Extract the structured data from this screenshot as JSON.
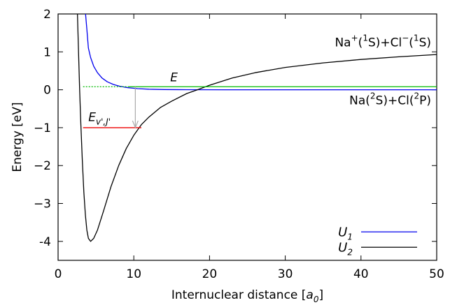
{
  "chart_data": {
    "type": "line",
    "xlabel": "Internuclear distance [a0]",
    "xlabel_main": "Internuclear distance [",
    "xlabel_sym": "a",
    "xlabel_sub": "0",
    "xlabel_end": "]",
    "ylabel": "Energy [eV]",
    "xlim": [
      0,
      50
    ],
    "ylim": [
      -4.5,
      2
    ],
    "x_ticks": [
      0,
      10,
      20,
      30,
      40,
      50
    ],
    "y_ticks": [
      2,
      1,
      0,
      -1,
      -2,
      -3,
      -4
    ],
    "x_tick_labels": [
      "0",
      "10",
      "20",
      "30",
      "40",
      "50"
    ],
    "y_tick_labels": [
      "2",
      "1",
      "0",
      "−1",
      "−2",
      "−3",
      "-4"
    ],
    "grid": false,
    "legend_position": "bottom-right",
    "series": [
      {
        "name": "U1",
        "legend_symbol": "U",
        "legend_sub": "1",
        "color": "#0000ee",
        "points": [
          [
            3.6,
            2.05
          ],
          [
            3.8,
            1.6
          ],
          [
            4.0,
            1.1
          ],
          [
            4.3,
            0.85
          ],
          [
            4.7,
            0.62
          ],
          [
            5.2,
            0.45
          ],
          [
            5.8,
            0.31
          ],
          [
            6.5,
            0.21
          ],
          [
            7.3,
            0.14
          ],
          [
            8.2,
            0.09
          ],
          [
            9.2,
            0.055
          ],
          [
            10.5,
            0.03
          ],
          [
            12.0,
            0.015
          ],
          [
            14.0,
            0.006
          ],
          [
            17.0,
            0.002
          ],
          [
            22.0,
            0.0
          ],
          [
            30.0,
            0.0
          ],
          [
            40.0,
            0.0
          ],
          [
            50.0,
            0.0
          ]
        ]
      },
      {
        "name": "U2",
        "legend_symbol": "U",
        "legend_sub": "2",
        "color": "#000000",
        "points": [
          [
            2.55,
            2.05
          ],
          [
            2.7,
            1.0
          ],
          [
            2.85,
            0.0
          ],
          [
            3.0,
            -0.9
          ],
          [
            3.2,
            -1.85
          ],
          [
            3.4,
            -2.7
          ],
          [
            3.6,
            -3.3
          ],
          [
            3.8,
            -3.7
          ],
          [
            4.0,
            -3.92
          ],
          [
            4.3,
            -4.0
          ],
          [
            4.7,
            -3.92
          ],
          [
            5.2,
            -3.7
          ],
          [
            6.0,
            -3.2
          ],
          [
            7.0,
            -2.55
          ],
          [
            8.0,
            -2.0
          ],
          [
            9.0,
            -1.55
          ],
          [
            10.0,
            -1.2
          ],
          [
            11.0,
            -0.92
          ],
          [
            12.0,
            -0.72
          ],
          [
            13.5,
            -0.47
          ],
          [
            15.0,
            -0.3
          ],
          [
            17.0,
            -0.1
          ],
          [
            18.4,
            0.0
          ],
          [
            20.0,
            0.12
          ],
          [
            23.0,
            0.31
          ],
          [
            26.0,
            0.45
          ],
          [
            30.0,
            0.59
          ],
          [
            35.0,
            0.71
          ],
          [
            40.0,
            0.8
          ],
          [
            45.0,
            0.87
          ],
          [
            50.0,
            0.93
          ]
        ]
      }
    ],
    "energy_E": {
      "label": "E",
      "value": 0.08,
      "color": "#00bb00",
      "dotted_from_x": 3.3,
      "solid_from_x": 9.2,
      "to_x": 50
    },
    "bound_level": {
      "label_symbol": "E",
      "label_sub": "v',J'",
      "value": -1.0,
      "color": "#ee0000",
      "from_x": 3.3,
      "to_x": 11.0
    },
    "transition_arrow": {
      "x": 10.2,
      "from_y": 0.08,
      "to_y": -1.0,
      "color": "#aaaaaa"
    },
    "annotations": {
      "upper_asymptote": {
        "na": "Na",
        "na_sup": "+",
        "open1": "(",
        "s1_sup": "1",
        "s1": "S)+Cl",
        "cl_sup": "−",
        "open2": "(",
        "s2_sup": "1",
        "s2": "S)"
      },
      "lower_asymptote": {
        "na": "Na(",
        "na_sup": "2",
        "s": "S)+Cl(",
        "cl_sup": "2",
        "p": "P)"
      }
    }
  }
}
